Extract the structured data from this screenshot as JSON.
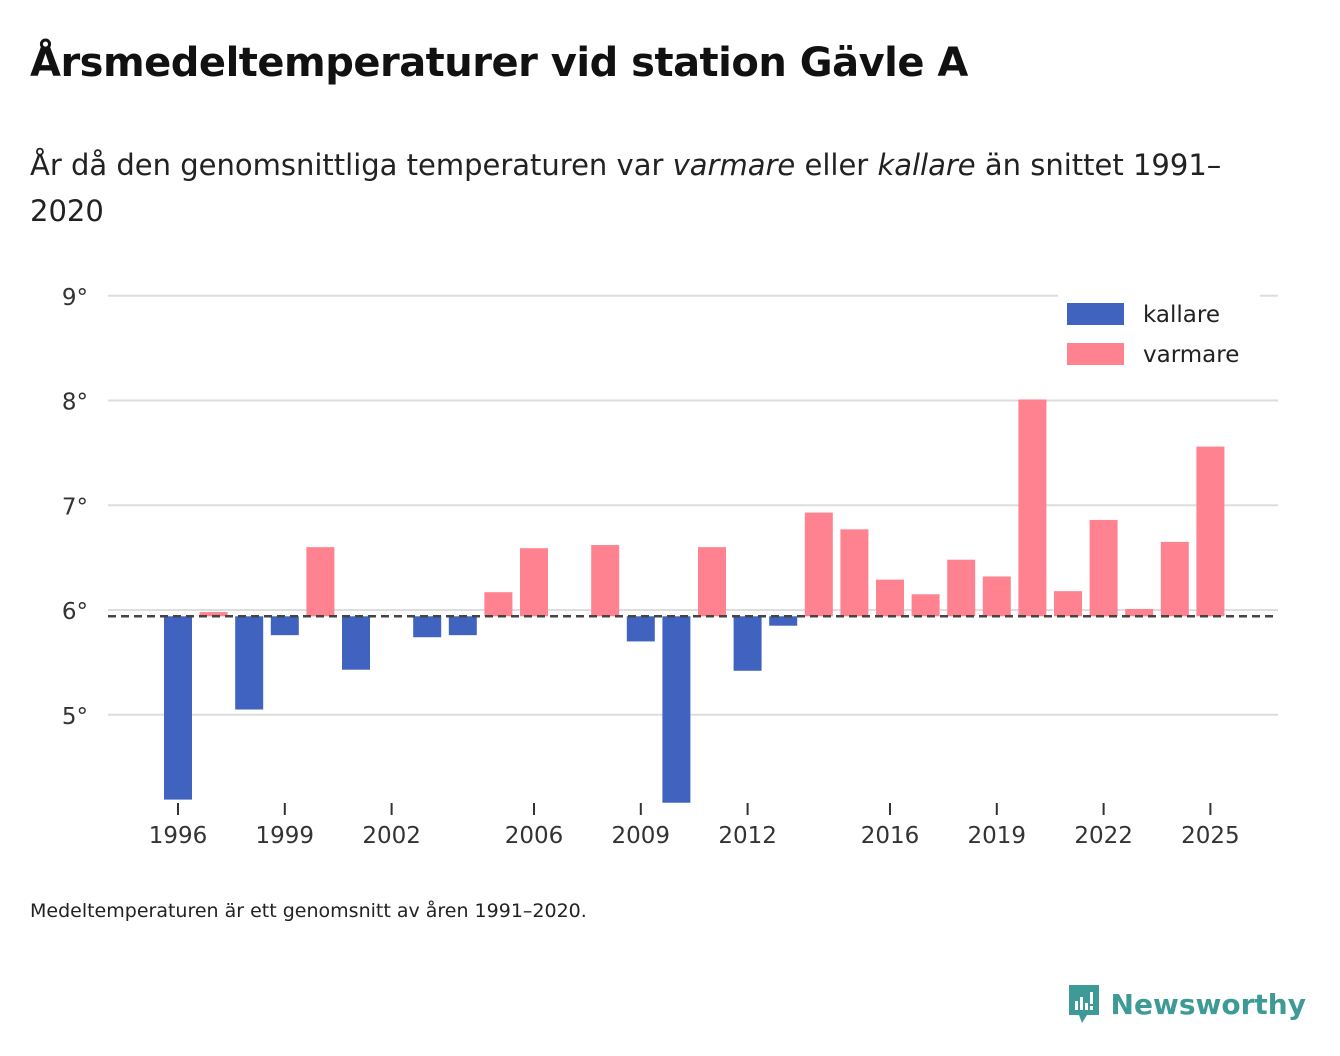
{
  "title": "Årsmedeltemperaturer vid station Gävle A",
  "subtitle": {
    "pre": "År då den genomsnittliga temperaturen var ",
    "warm": "varmare",
    "mid": " eller ",
    "cold": "kallare",
    "post": " än snittet 1991–2020"
  },
  "note": "Medeltemperaturen är ett genomsnitt av åren 1991–2020.",
  "brand": "Newsworthy",
  "colors": {
    "cold": "#4063bf",
    "warm": "#ff8291",
    "brand": "#3e9a97"
  },
  "chart_data": {
    "type": "bar",
    "title": "Årsmedeltemperaturer vid station Gävle A",
    "xlabel": "",
    "ylabel": "",
    "baseline": 5.94,
    "ylim": [
      4.1,
      9
    ],
    "y_ticks": [
      5,
      6,
      7,
      8,
      9
    ],
    "y_tick_labels": [
      "5°",
      "6°",
      "7°",
      "8°",
      "9°"
    ],
    "x_ticks": [
      1996,
      1999,
      2002,
      2006,
      2009,
      2012,
      2016,
      2019,
      2022,
      2025
    ],
    "x_tick_labels": [
      "1996",
      "1999",
      "2002",
      "2006",
      "2009",
      "2012",
      "2016",
      "2019",
      "2022",
      "2025"
    ],
    "legend": [
      {
        "name": "kallare",
        "color": "#4063bf"
      },
      {
        "name": "varmare",
        "color": "#ff8291"
      }
    ],
    "legend_position": "top-right",
    "grid": true,
    "categories": [
      1996,
      1997,
      1998,
      1999,
      2000,
      2001,
      2002,
      2003,
      2004,
      2005,
      2006,
      2007,
      2008,
      2009,
      2010,
      2011,
      2012,
      2013,
      2014,
      2015,
      2016,
      2017,
      2018,
      2019,
      2020,
      2021,
      2022,
      2023,
      2024,
      2025
    ],
    "values": [
      4.19,
      5.98,
      5.05,
      5.76,
      6.6,
      5.43,
      null,
      5.74,
      5.76,
      6.17,
      6.59,
      null,
      6.62,
      5.7,
      4.16,
      6.6,
      5.42,
      5.85,
      6.93,
      6.77,
      6.29,
      6.15,
      6.48,
      6.32,
      8.01,
      6.18,
      6.86,
      6.01,
      6.65,
      7.56
    ]
  }
}
